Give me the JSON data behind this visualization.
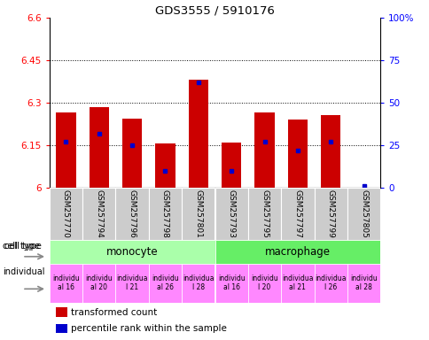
{
  "title": "GDS3555 / 5910176",
  "samples": [
    "GSM257770",
    "GSM257794",
    "GSM257796",
    "GSM257798",
    "GSM257801",
    "GSM257793",
    "GSM257795",
    "GSM257797",
    "GSM257799",
    "GSM257805"
  ],
  "transformed_counts": [
    6.265,
    6.285,
    6.245,
    6.155,
    6.38,
    6.16,
    6.265,
    6.24,
    6.255,
    6.0
  ],
  "percentile_ranks": [
    27,
    32,
    25,
    10,
    62,
    10,
    27,
    22,
    27,
    1
  ],
  "ylim_left": [
    6.0,
    6.6
  ],
  "ylim_right": [
    0,
    100
  ],
  "yticks_left": [
    6.0,
    6.15,
    6.3,
    6.45,
    6.6
  ],
  "yticks_right": [
    0,
    25,
    50,
    75,
    100
  ],
  "ytick_labels_left": [
    "6",
    "6.15",
    "6.3",
    "6.45",
    "6.6"
  ],
  "ytick_labels_right": [
    "0",
    "25",
    "50",
    "75",
    "100%"
  ],
  "bar_color": "#cc0000",
  "blue_color": "#0000cc",
  "monocyte_color": "#aaffaa",
  "macrophage_color": "#66ee66",
  "individual_color": "#ff88ff",
  "sample_bg": "#cccccc",
  "bar_width": 0.6,
  "base_value": 6.0,
  "legend_red": "transformed count",
  "legend_blue": "percentile rank within the sample",
  "ind_labels": [
    "individu\nal 16",
    "individu\nal 20",
    "individua\nl 21",
    "individu\nal 26",
    "individua\nl 28",
    "individu\nal 16",
    "individu\nl 20",
    "individua\nal 21",
    "individua\nl 26",
    "individu\nal 28"
  ]
}
